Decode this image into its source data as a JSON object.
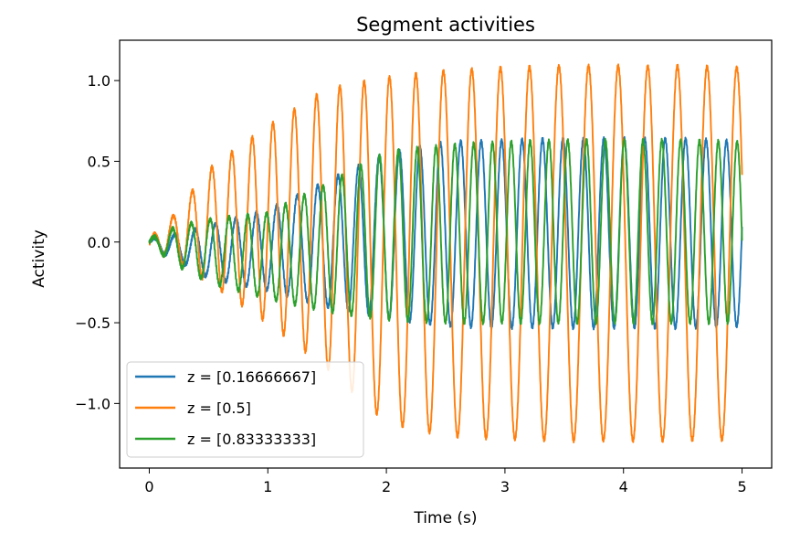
{
  "chart_data": {
    "type": "line",
    "title": "Segment activities",
    "xlabel": "Time (s)",
    "ylabel": "Activity",
    "xlim": [
      -0.25,
      5.25
    ],
    "ylim": [
      -1.4,
      1.25
    ],
    "xticks": [
      0,
      1,
      2,
      3,
      4,
      5
    ],
    "xtick_labels": [
      "0",
      "1",
      "2",
      "3",
      "4",
      "5"
    ],
    "yticks": [
      -1.0,
      -0.5,
      0.0,
      0.5,
      1.0
    ],
    "ytick_labels": [
      "−1.0",
      "−0.5",
      "0.0",
      "0.5",
      "1.0"
    ],
    "grid": false,
    "legend_position": "lower-left",
    "series": [
      {
        "name": "z = [0.16666667]",
        "color": "#1f77b4",
        "x": [
          0,
          0.25,
          0.5,
          1.0,
          1.5,
          2.0,
          2.5,
          3.0,
          3.5,
          4.0,
          4.5,
          5.0
        ],
        "y_max": [
          0.02,
          0.05,
          0.1,
          0.2,
          0.38,
          0.55,
          0.62,
          0.63,
          0.64,
          0.64,
          0.64,
          0.62
        ],
        "y_min": [
          -0.03,
          -0.12,
          -0.22,
          -0.3,
          -0.4,
          -0.47,
          -0.52,
          -0.53,
          -0.53,
          -0.53,
          -0.53,
          -0.52
        ],
        "frequency_hz": [
          5.8,
          5.8,
          5.8,
          5.8,
          5.8,
          5.8,
          5.8,
          5.8,
          5.8,
          5.8,
          5.8,
          5.8
        ]
      },
      {
        "name": "z = [0.5]",
        "color": "#ff7f0e",
        "x": [
          0,
          0.2,
          0.5,
          1.0,
          1.5,
          2.0,
          2.5,
          3.0,
          3.5,
          4.0,
          4.5,
          5.0
        ],
        "y_max": [
          0.02,
          0.16,
          0.45,
          0.72,
          0.95,
          1.02,
          1.06,
          1.08,
          1.09,
          1.09,
          1.09,
          1.08
        ],
        "y_min": [
          -0.05,
          -0.1,
          -0.25,
          -0.5,
          -0.78,
          -1.12,
          -1.2,
          -1.22,
          -1.23,
          -1.23,
          -1.23,
          -1.22
        ],
        "frequency_hz": [
          6.2,
          6.2,
          6.0,
          5.7,
          5.1,
          4.6,
          4.2,
          4.1,
          4.0,
          4.0,
          4.0,
          4.0
        ]
      },
      {
        "name": "z = [0.83333333]",
        "color": "#2ca02c",
        "x": [
          0,
          0.25,
          0.5,
          1.0,
          1.5,
          2.0,
          2.5,
          3.0,
          3.5,
          4.0,
          4.5,
          5.0
        ],
        "y_max": [
          0.02,
          0.1,
          0.14,
          0.18,
          0.36,
          0.56,
          0.6,
          0.62,
          0.63,
          0.63,
          0.63,
          0.62
        ],
        "y_min": [
          -0.02,
          -0.15,
          -0.25,
          -0.35,
          -0.43,
          -0.48,
          -0.5,
          -0.5,
          -0.5,
          -0.5,
          -0.5,
          -0.5
        ],
        "frequency_hz": [
          6.3,
          6.3,
          6.3,
          6.3,
          6.3,
          6.3,
          6.3,
          6.3,
          6.3,
          6.3,
          6.3,
          6.3
        ]
      }
    ]
  }
}
